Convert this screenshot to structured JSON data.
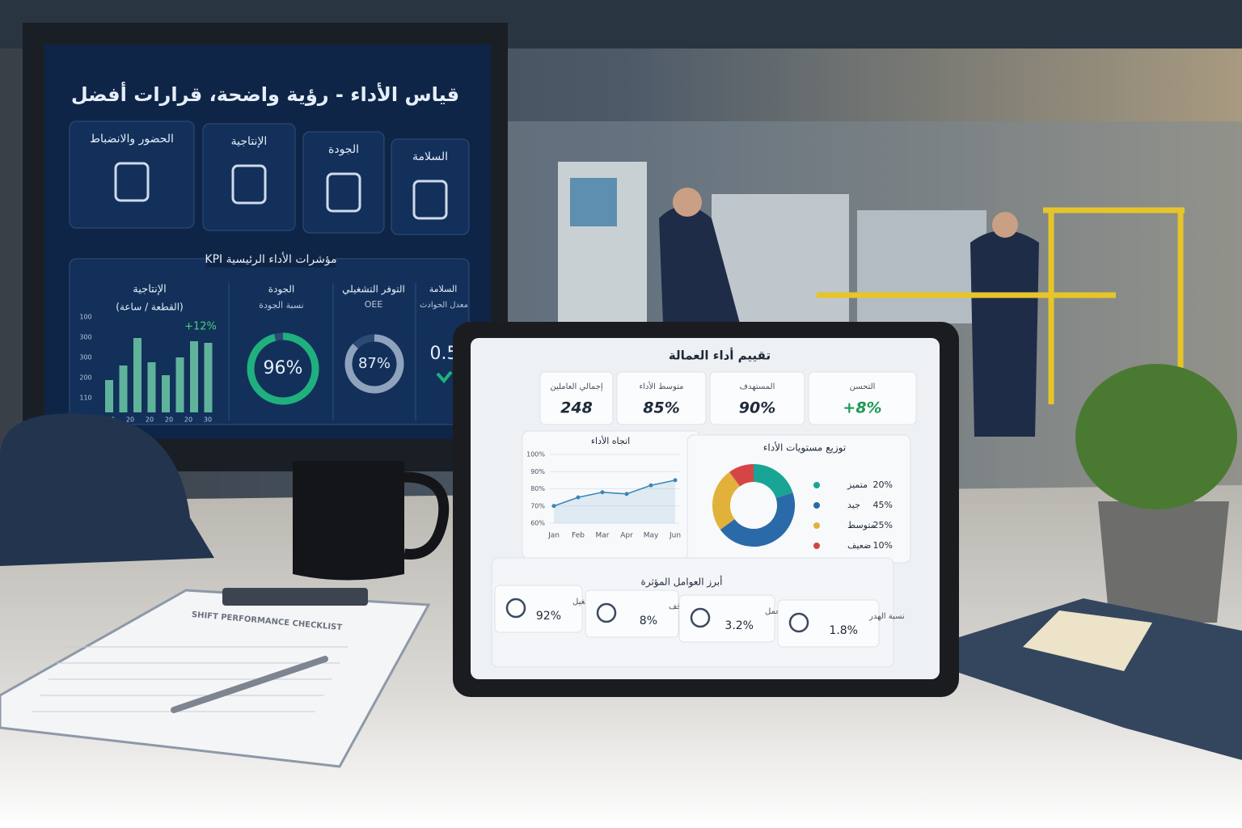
{
  "wall_screen": {
    "title": "قياس الأداء - رؤية واضحة، قرارات أفضل",
    "categories": [
      "الحضور والانضباط",
      "الإنتاجية",
      "الجودة",
      "السلامة"
    ],
    "kpi_title": "مؤشرات الأداء الرئيسية KPI",
    "productivity": {
      "title": "الإنتاجية",
      "subtitle": "(القطعة / ساعة)",
      "change": "+12%",
      "axis_labels_y": [
        "100",
        "300",
        "300",
        "200",
        "110"
      ],
      "axis_labels_x": [
        "20",
        "20",
        "20",
        "20",
        "20",
        "30"
      ],
      "bar_values": [
        40,
        58,
        92,
        62,
        46,
        68,
        88,
        86
      ],
      "bar_color": "#5fb39a"
    },
    "quality": {
      "title": "الجودة",
      "subtitle": "نسبة الجودة",
      "value": 96,
      "label": "96%",
      "color": "#1fb07e"
    },
    "oee": {
      "title": "التوفر التشغيلي",
      "subtitle": "OEE",
      "value": 87,
      "label": "87%",
      "color": "#8fa3bd"
    },
    "safety": {
      "title": "السلامة",
      "subtitle": "معدل الحوادث",
      "value": "0.5"
    }
  },
  "tablet": {
    "title": "تقييم أداء العمالة",
    "cards": [
      {
        "label": "إجمالي العاملين",
        "value": "248"
      },
      {
        "label": "متوسط الأداء",
        "value": "85%"
      },
      {
        "label": "المستهدف",
        "value": "90%"
      },
      {
        "label": "التحسن",
        "value": "+8%"
      }
    ],
    "trend_chart": {
      "type": "line",
      "title": "اتجاه الأداء",
      "categories": [
        "Jan",
        "Feb",
        "Mar",
        "Apr",
        "May",
        "Jun"
      ],
      "values": [
        70,
        75,
        78,
        77,
        82,
        85
      ],
      "color": "#3a86b8",
      "ylim": [
        60,
        100
      ],
      "yticks": [
        {
          "value": 60,
          "label": "60%"
        },
        {
          "value": 70,
          "label": "70%"
        },
        {
          "value": 80,
          "label": "80%"
        },
        {
          "value": 90,
          "label": "90%"
        },
        {
          "value": 100,
          "label": "100%"
        }
      ]
    },
    "distribution_chart": {
      "type": "pie",
      "title": "توزيع مستويات الأداء",
      "categories": [
        "متميز",
        "جيد",
        "متوسط",
        "ضعيف"
      ],
      "values": [
        20,
        45,
        25,
        10
      ],
      "value_labels": [
        "20%",
        "45%",
        "25%",
        "10%"
      ],
      "colors": [
        "#18a596",
        "#2a6aa8",
        "#e2b13a",
        "#d64545"
      ]
    },
    "factors_title": "أبرز العوامل المؤثرة",
    "factors": [
      {
        "label": "وقت التشغيل",
        "value": "92%"
      },
      {
        "label": "فترة التوقف",
        "value": "8%"
      },
      {
        "label": "إعادة العمل",
        "value": "3.2%"
      },
      {
        "label": "نسبة الهدر",
        "value": "1.8%"
      }
    ]
  },
  "clipboard": {
    "title": "SHIFT PERFORMANCE CHECKLIST"
  }
}
